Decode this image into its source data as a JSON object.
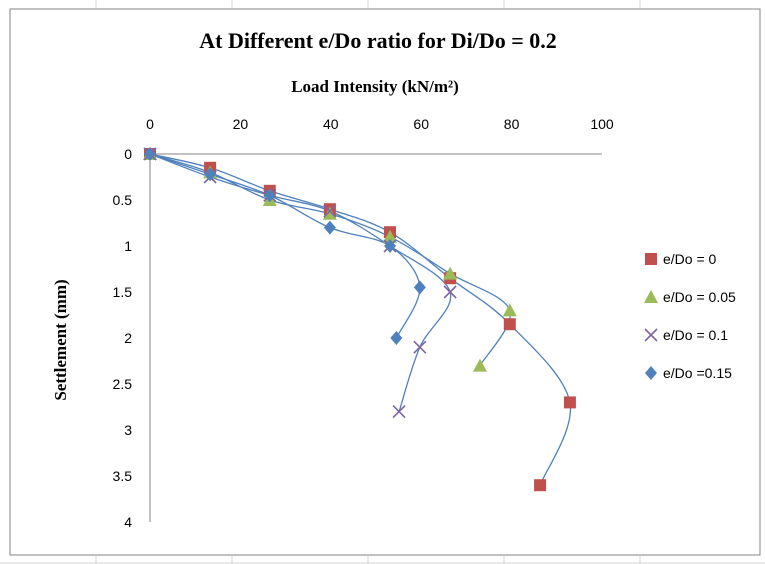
{
  "chart_data": {
    "type": "scatter",
    "title": "At Different e/Do ratio for Di/Do = 0.2",
    "xlabel": "Load Intensity  (kN/m²)",
    "ylabel": "Settlement  (mm)",
    "xlim": [
      0,
      100
    ],
    "ylim": [
      0,
      4
    ],
    "x_axis_position": "top",
    "y_axis_reversed": true,
    "x_ticks": [
      "0",
      "20",
      "40",
      "60",
      "80",
      "100"
    ],
    "y_ticks": [
      "0",
      "0.5",
      "1",
      "1.5",
      "2",
      "2.5",
      "3",
      "3.5",
      "4"
    ],
    "grid": false,
    "legend_position": "right",
    "smoothed_lines": true,
    "series": [
      {
        "name": "e/Do = 0",
        "marker": "square",
        "color": "#c0504d",
        "points": [
          [
            0,
            0
          ],
          [
            13.3,
            0.15
          ],
          [
            26.5,
            0.4
          ],
          [
            39.8,
            0.6
          ],
          [
            53.1,
            0.85
          ],
          [
            66.4,
            1.35
          ],
          [
            79.6,
            1.85
          ],
          [
            92.9,
            2.7
          ],
          [
            86.3,
            3.6
          ]
        ]
      },
      {
        "name": "e/Do = 0.05",
        "marker": "triangle",
        "color": "#9bbb59",
        "points": [
          [
            0,
            0
          ],
          [
            13.3,
            0.2
          ],
          [
            26.5,
            0.5
          ],
          [
            39.8,
            0.65
          ],
          [
            53.1,
            0.9
          ],
          [
            66.4,
            1.3
          ],
          [
            79.6,
            1.7
          ],
          [
            73,
            2.3
          ]
        ]
      },
      {
        "name": "e/Do = 0.1",
        "marker": "x",
        "color": "#8064a2",
        "points": [
          [
            0,
            0
          ],
          [
            13.3,
            0.25
          ],
          [
            26.5,
            0.45
          ],
          [
            39.8,
            0.62
          ],
          [
            53.1,
            1.0
          ],
          [
            66.4,
            1.5
          ],
          [
            59.7,
            2.1
          ],
          [
            55.1,
            2.8
          ]
        ]
      },
      {
        "name": "e/Do =0.15",
        "marker": "diamond",
        "color": "#4f81bd",
        "points": [
          [
            0,
            0
          ],
          [
            13.3,
            0.22
          ],
          [
            26.5,
            0.45
          ],
          [
            39.8,
            0.8
          ],
          [
            53.1,
            1.0
          ],
          [
            59.7,
            1.45
          ],
          [
            54.5,
            2.0
          ]
        ]
      }
    ]
  }
}
